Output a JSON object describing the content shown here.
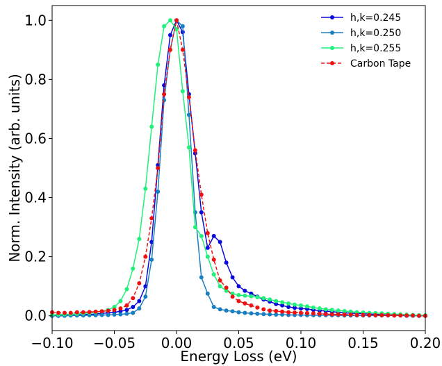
{
  "chart_data": {
    "type": "line",
    "xlabel": "Energy Loss (eV)",
    "ylabel": "Norm. Intensity (arb. units)",
    "xlim": [
      -0.1,
      0.2
    ],
    "ylim": [
      -0.05,
      1.05
    ],
    "xticks": [
      -0.1,
      -0.05,
      0.0,
      0.05,
      0.1,
      0.15,
      0.2
    ],
    "xtick_labels": [
      "−0.10",
      "−0.05",
      "0.00",
      "0.05",
      "0.10",
      "0.15",
      "0.20"
    ],
    "yticks": [
      0.0,
      0.2,
      0.4,
      0.6,
      0.8,
      1.0
    ],
    "ytick_labels": [
      "0.0",
      "0.2",
      "0.4",
      "0.6",
      "0.8",
      "1.0"
    ],
    "grid": false,
    "legend_position": "top-right",
    "series": [
      {
        "name": "h,k=0.245",
        "color": "#0a0adc",
        "dashed": false,
        "x": [
          -0.1,
          -0.095,
          -0.09,
          -0.085,
          -0.08,
          -0.075,
          -0.07,
          -0.065,
          -0.06,
          -0.055,
          -0.05,
          -0.045,
          -0.04,
          -0.035,
          -0.03,
          -0.025,
          -0.02,
          -0.015,
          -0.01,
          -0.005,
          0.0,
          0.005,
          0.01,
          0.015,
          0.02,
          0.025,
          0.03,
          0.035,
          0.04,
          0.045,
          0.05,
          0.055,
          0.06,
          0.065,
          0.07,
          0.075,
          0.08,
          0.085,
          0.09,
          0.095,
          0.1,
          0.105,
          0.11,
          0.115,
          0.12,
          0.125,
          0.13,
          0.135,
          0.14,
          0.145,
          0.15,
          0.155,
          0.16,
          0.165,
          0.17,
          0.175,
          0.18,
          0.185,
          0.19,
          0.195,
          0.2
        ],
        "y": [
          0.0,
          0.0,
          0.002,
          0.002,
          0.003,
          0.004,
          0.005,
          0.006,
          0.008,
          0.01,
          0.012,
          0.015,
          0.02,
          0.03,
          0.05,
          0.1,
          0.25,
          0.51,
          0.78,
          0.95,
          1.0,
          0.96,
          0.75,
          0.55,
          0.35,
          0.23,
          0.27,
          0.25,
          0.18,
          0.13,
          0.1,
          0.085,
          0.075,
          0.065,
          0.055,
          0.048,
          0.04,
          0.035,
          0.03,
          0.027,
          0.025,
          0.023,
          0.02,
          0.018,
          0.016,
          0.014,
          0.012,
          0.01,
          0.009,
          0.008,
          0.007,
          0.006,
          0.005,
          0.004,
          0.003,
          0.003,
          0.002,
          0.002,
          0.001,
          0.0,
          0.0
        ]
      },
      {
        "name": "h,k=0.250",
        "color": "#1a7fc1",
        "dashed": false,
        "x": [
          -0.1,
          -0.095,
          -0.09,
          -0.085,
          -0.08,
          -0.075,
          -0.07,
          -0.065,
          -0.06,
          -0.055,
          -0.05,
          -0.045,
          -0.04,
          -0.035,
          -0.03,
          -0.025,
          -0.02,
          -0.015,
          -0.01,
          -0.005,
          0.0,
          0.005,
          0.01,
          0.015,
          0.02,
          0.025,
          0.03,
          0.035,
          0.04,
          0.045,
          0.05,
          0.055,
          0.06,
          0.065,
          0.07,
          0.075,
          0.08,
          0.085,
          0.09,
          0.095,
          0.1,
          0.105,
          0.11,
          0.115,
          0.12,
          0.125,
          0.13,
          0.135,
          0.14,
          0.145,
          0.15,
          0.155,
          0.16,
          0.165,
          0.17,
          0.175,
          0.18,
          0.185,
          0.19,
          0.195,
          0.2
        ],
        "y": [
          0.0,
          0.0,
          0.0,
          0.001,
          0.001,
          0.001,
          0.002,
          0.002,
          0.003,
          0.003,
          0.004,
          0.005,
          0.007,
          0.01,
          0.025,
          0.065,
          0.19,
          0.42,
          0.73,
          0.9,
          1.0,
          0.98,
          0.68,
          0.35,
          0.13,
          0.075,
          0.03,
          0.022,
          0.018,
          0.015,
          0.012,
          0.01,
          0.008,
          0.007,
          0.006,
          0.005,
          0.004,
          0.004,
          0.003,
          0.003,
          0.003,
          0.002,
          0.002,
          0.002,
          0.002,
          0.002,
          0.002,
          0.001,
          0.001,
          0.001,
          0.001,
          0.001,
          0.001,
          0.001,
          0.001,
          0.001,
          0.001,
          0.0,
          0.0,
          0.0,
          0.0
        ]
      },
      {
        "name": "h,k=0.255",
        "color": "#1ff07a",
        "dashed": false,
        "x": [
          -0.1,
          -0.095,
          -0.09,
          -0.085,
          -0.08,
          -0.075,
          -0.07,
          -0.065,
          -0.06,
          -0.055,
          -0.05,
          -0.045,
          -0.04,
          -0.035,
          -0.03,
          -0.025,
          -0.02,
          -0.015,
          -0.01,
          -0.005,
          0.0,
          0.005,
          0.01,
          0.015,
          0.02,
          0.025,
          0.03,
          0.035,
          0.04,
          0.045,
          0.05,
          0.055,
          0.06,
          0.065,
          0.07,
          0.075,
          0.08,
          0.085,
          0.09,
          0.095,
          0.1,
          0.105,
          0.11,
          0.115,
          0.12,
          0.125,
          0.13,
          0.135,
          0.14,
          0.145,
          0.15,
          0.155,
          0.16,
          0.165,
          0.17,
          0.175,
          0.18,
          0.185,
          0.19,
          0.195,
          0.2
        ],
        "y": [
          0.004,
          0.004,
          0.005,
          0.006,
          0.007,
          0.008,
          0.01,
          0.012,
          0.015,
          0.02,
          0.03,
          0.05,
          0.09,
          0.16,
          0.26,
          0.43,
          0.64,
          0.85,
          0.98,
          1.0,
          0.97,
          0.76,
          0.57,
          0.3,
          0.27,
          0.2,
          0.14,
          0.1,
          0.085,
          0.075,
          0.07,
          0.068,
          0.066,
          0.063,
          0.06,
          0.055,
          0.05,
          0.046,
          0.042,
          0.038,
          0.035,
          0.032,
          0.028,
          0.025,
          0.022,
          0.02,
          0.018,
          0.016,
          0.014,
          0.012,
          0.011,
          0.01,
          0.009,
          0.008,
          0.007,
          0.006,
          0.005,
          0.004,
          0.003,
          0.002,
          0.002
        ]
      },
      {
        "name": "Carbon Tape",
        "color": "#ee1111",
        "dashed": true,
        "x": [
          -0.1,
          -0.095,
          -0.09,
          -0.085,
          -0.08,
          -0.075,
          -0.07,
          -0.065,
          -0.06,
          -0.055,
          -0.05,
          -0.045,
          -0.04,
          -0.035,
          -0.03,
          -0.025,
          -0.02,
          -0.015,
          -0.01,
          -0.005,
          0.0,
          0.005,
          0.01,
          0.015,
          0.02,
          0.025,
          0.03,
          0.035,
          0.04,
          0.045,
          0.05,
          0.055,
          0.06,
          0.065,
          0.07,
          0.075,
          0.08,
          0.085,
          0.09,
          0.095,
          0.1,
          0.105,
          0.11,
          0.115,
          0.12,
          0.125,
          0.13,
          0.135,
          0.14,
          0.145,
          0.15,
          0.155,
          0.16,
          0.165,
          0.17,
          0.175,
          0.18,
          0.185,
          0.19,
          0.195,
          0.2
        ],
        "y": [
          0.012,
          0.01,
          0.01,
          0.01,
          0.012,
          0.012,
          0.013,
          0.014,
          0.015,
          0.017,
          0.02,
          0.025,
          0.035,
          0.06,
          0.11,
          0.2,
          0.33,
          0.5,
          0.75,
          0.9,
          1.0,
          0.9,
          0.74,
          0.56,
          0.41,
          0.28,
          0.19,
          0.12,
          0.095,
          0.065,
          0.05,
          0.042,
          0.035,
          0.028,
          0.022,
          0.018,
          0.016,
          0.014,
          0.012,
          0.011,
          0.01,
          0.009,
          0.008,
          0.007,
          0.006,
          0.005,
          0.005,
          0.004,
          0.004,
          0.003,
          0.003,
          0.003,
          0.002,
          0.002,
          0.002,
          0.001,
          0.001,
          0.001,
          0.001,
          0.0,
          0.0
        ]
      }
    ]
  }
}
